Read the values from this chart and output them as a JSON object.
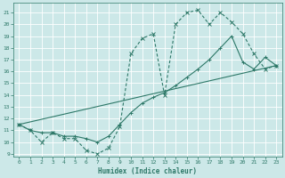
{
  "xlabel": "Humidex (Indice chaleur)",
  "bg_color": "#cce8e8",
  "line_color": "#2d7868",
  "grid_color": "#b0d8d8",
  "xlim": [
    -0.5,
    23.5
  ],
  "ylim": [
    8.8,
    21.8
  ],
  "xticks": [
    0,
    1,
    2,
    3,
    4,
    5,
    6,
    7,
    8,
    9,
    10,
    11,
    12,
    13,
    14,
    15,
    16,
    17,
    18,
    19,
    20,
    21,
    22,
    23
  ],
  "yticks": [
    9,
    10,
    11,
    12,
    13,
    14,
    15,
    16,
    17,
    18,
    19,
    20,
    21
  ],
  "line1_x": [
    0,
    1,
    2,
    3,
    4,
    5,
    6,
    7,
    8,
    9,
    10,
    11,
    12,
    13,
    14,
    15,
    16,
    17,
    18,
    19,
    20,
    21,
    22,
    23
  ],
  "line1_y": [
    11.5,
    11.0,
    10.0,
    10.8,
    10.3,
    10.3,
    9.3,
    9.0,
    9.5,
    11.3,
    17.5,
    18.8,
    19.2,
    14.0,
    20.0,
    21.0,
    21.2,
    20.0,
    21.0,
    20.2,
    19.2,
    17.5,
    16.2,
    16.5
  ],
  "line2_x": [
    0,
    23
  ],
  "line2_y": [
    11.5,
    16.5
  ],
  "line3_x": [
    0,
    1,
    2,
    3,
    4,
    5,
    6,
    7,
    8,
    9,
    10,
    11,
    12,
    13,
    14,
    15,
    16,
    17,
    18,
    19,
    20,
    21,
    22,
    23
  ],
  "line3_y": [
    11.5,
    11.0,
    10.8,
    10.8,
    10.5,
    10.5,
    10.3,
    10.0,
    10.5,
    11.5,
    12.5,
    13.3,
    13.8,
    14.2,
    14.8,
    15.5,
    16.2,
    17.0,
    18.0,
    19.0,
    16.8,
    16.2,
    17.2,
    16.5
  ]
}
